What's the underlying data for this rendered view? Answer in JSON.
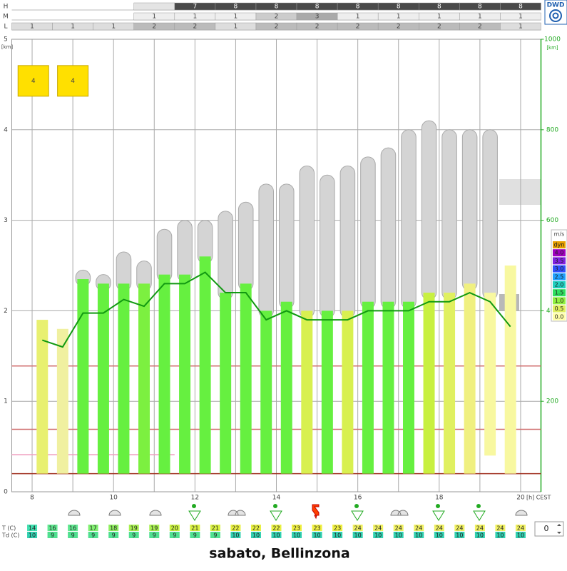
{
  "header": {
    "rows": [
      {
        "label": "H",
        "values": [
          null,
          null,
          null,
          null,
          7,
          8,
          8,
          8,
          8,
          8,
          8,
          8,
          8
        ],
        "colors": [
          null,
          null,
          null,
          "#e4e4e4",
          "#4a4a4a",
          "#4a4a4a",
          "#4a4a4a",
          "#4a4a4a",
          "#4a4a4a",
          "#4a4a4a",
          "#4a4a4a",
          "#4a4a4a",
          "#4a4a4a"
        ],
        "text_color": "#ffffff"
      },
      {
        "label": "M",
        "values": [
          null,
          null,
          null,
          1,
          1,
          1,
          2,
          3,
          1,
          1,
          1,
          1,
          1
        ],
        "colors": [
          null,
          null,
          null,
          "#eeeeee",
          "#eeeeee",
          "#eeeeee",
          "#cccccc",
          "#aaaaaa",
          "#eeeeee",
          "#eeeeee",
          "#eeeeee",
          "#eeeeee",
          "#eeeeee"
        ],
        "text_color": "#444444"
      },
      {
        "label": "L",
        "values": [
          1,
          1,
          1,
          2,
          2,
          1,
          2,
          2,
          2,
          2,
          2,
          2,
          1
        ],
        "colors": [
          "#dddddd",
          "#dddddd",
          "#dddddd",
          "#bbbbbb",
          "#bbbbbb",
          "#dddddd",
          "#bbbbbb",
          "#bbbbbb",
          "#bbbbbb",
          "#bbbbbb",
          "#bbbbbb",
          "#bbbbbb",
          "#dddddd"
        ],
        "text_color": "#444444"
      }
    ]
  },
  "logo": "DWD",
  "chart_data": {
    "type": "meteogram",
    "xlim": [
      7.5,
      20.5
    ],
    "xticks": [
      8,
      10,
      12,
      14,
      16,
      18,
      20
    ],
    "xgrid": [
      8,
      9,
      10,
      11,
      12,
      13,
      14,
      15,
      16,
      17,
      18,
      19,
      20
    ],
    "x_unit": "[h] CEST",
    "ylim": [
      0,
      5
    ],
    "yticks": [
      0,
      1,
      2,
      3,
      4,
      5
    ],
    "y_unit": "[km]",
    "y2lim": [
      0,
      1000
    ],
    "y2ticks": [
      200,
      400,
      600,
      800,
      1000
    ],
    "y2_unit": "[km]",
    "y2_color": "#22aa22",
    "grid": true,
    "bars": {
      "x": [
        8.25,
        8.75,
        9.25,
        9.75,
        10.25,
        10.75,
        11.25,
        11.75,
        12.25,
        12.75,
        13.25,
        13.75,
        14.25,
        14.75,
        15.25,
        15.75,
        16.25,
        16.75,
        17.25,
        17.75,
        18.25,
        18.75,
        19.25,
        19.75
      ],
      "base": [
        0.2,
        0.2,
        0.2,
        0.2,
        0.2,
        0.2,
        0.2,
        0.2,
        0.2,
        0.2,
        0.2,
        0.2,
        0.2,
        0.2,
        0.2,
        0.2,
        0.2,
        0.2,
        0.2,
        0.2,
        0.2,
        0.2,
        0.4,
        0.2
      ],
      "top": [
        1.9,
        1.8,
        2.35,
        2.3,
        2.3,
        2.3,
        2.4,
        2.4,
        2.6,
        2.2,
        2.3,
        2.0,
        2.1,
        2.0,
        2.0,
        2.0,
        2.1,
        2.1,
        2.1,
        2.2,
        2.2,
        2.3,
        2.2,
        2.5
      ],
      "cloud_top": [
        null,
        null,
        2.45,
        2.4,
        2.65,
        2.55,
        2.9,
        3.0,
        3.0,
        3.1,
        3.2,
        3.4,
        3.4,
        3.6,
        3.5,
        3.6,
        3.7,
        3.8,
        4.0,
        4.1,
        4.0,
        4.0,
        4.0,
        null
      ],
      "colors": [
        "#e8f070",
        "#f0f0a0",
        "#66f040",
        "#66f040",
        "#66f040",
        "#7cf040",
        "#66f040",
        "#66f040",
        "#66f040",
        "#66f040",
        "#66f040",
        "#66f040",
        "#66f040",
        "#d8f050",
        "#66f040",
        "#d8f050",
        "#66f040",
        "#66f040",
        "#66f040",
        "#c8f040",
        "#e0f060",
        "#f0f080",
        "#f8f8a0",
        "#f8f8a0"
      ]
    },
    "boundary_layer": {
      "color": "#119911",
      "axis": "y2",
      "x": [
        8.25,
        8.75,
        9.25,
        9.75,
        10.25,
        10.75,
        11.25,
        11.75,
        12.25,
        12.75,
        13.25,
        13.75,
        14.25,
        14.75,
        15.25,
        15.75,
        16.25,
        16.75,
        17.25,
        17.75,
        18.25,
        18.75,
        19.25,
        19.75
      ],
      "values": [
        335,
        320,
        395,
        395,
        425,
        410,
        460,
        460,
        485,
        440,
        440,
        380,
        400,
        380,
        380,
        380,
        400,
        400,
        400,
        420,
        420,
        440,
        420,
        365
      ]
    },
    "levels": [
      {
        "value": 1.39,
        "color": "#d07070",
        "x": [
          7.5,
          20.5
        ]
      },
      {
        "value": 0.69,
        "color": "#d07070",
        "x": [
          7.5,
          20.5
        ]
      },
      {
        "value": 0.41,
        "color": "#f0a0c0",
        "x": [
          7.5,
          11.5
        ]
      },
      {
        "value": 0.2,
        "color": "#a03020",
        "x": [
          7.5,
          20.5
        ]
      }
    ],
    "annotations": [
      {
        "label": "4",
        "x": 8.03,
        "y": 4.54
      },
      {
        "label": "4",
        "x": 9.0,
        "y": 4.54
      }
    ],
    "legend": {
      "title": "m/s",
      "items": [
        {
          "label": "dyn",
          "color": "#e8a000"
        },
        {
          "label": "4.0",
          "color": "#a000c0"
        },
        {
          "label": "3.5",
          "color": "#8020e0"
        },
        {
          "label": "3.0",
          "color": "#3050ff"
        },
        {
          "label": "2.5",
          "color": "#20a0ff"
        },
        {
          "label": "2.0",
          "color": "#20d0c0"
        },
        {
          "label": "1.5",
          "color": "#30e060"
        },
        {
          "label": "1.0",
          "color": "#90f040"
        },
        {
          "label": "0.5",
          "color": "#e0f060"
        },
        {
          "label": "0.0",
          "color": "#ffffa8"
        }
      ]
    }
  },
  "table": {
    "x": [
      8,
      8.5,
      9,
      9.5,
      10,
      10.5,
      11,
      11.5,
      12,
      12.5,
      13,
      13.5,
      14,
      14.5,
      15,
      15.5,
      16,
      16.5,
      17,
      17.5,
      18,
      18.5,
      19,
      19.5,
      20
    ],
    "t_label": "T  (C)",
    "td_label": "Td (C)",
    "t": [
      14,
      16,
      16,
      17,
      18,
      19,
      19,
      20,
      21,
      21,
      22,
      22,
      22,
      23,
      23,
      23,
      24,
      24,
      24,
      24,
      24,
      24,
      24,
      24,
      24
    ],
    "t_colors": [
      "#40e0b0",
      "#60e890",
      "#60e890",
      "#80f070",
      "#90f060",
      "#a8f050",
      "#a8f050",
      "#c8f040",
      "#d8f040",
      "#d8f040",
      "#e8f040",
      "#e8f040",
      "#e8f040",
      "#f0f040",
      "#f0f040",
      "#f0f040",
      "#f0f060",
      "#f0f060",
      "#f0f060",
      "#f0f060",
      "#f0f060",
      "#f0f060",
      "#f0f060",
      "#f0f060",
      "#f0f060"
    ],
    "td": [
      10,
      9,
      9,
      9,
      9,
      9,
      9,
      9,
      9,
      9,
      10,
      10,
      10,
      10,
      10,
      10,
      10,
      10,
      10,
      10,
      10,
      10,
      10,
      10,
      10
    ],
    "td_colors": [
      "#30d0b0",
      "#50e090",
      "#50e090",
      "#50e090",
      "#50e090",
      "#50e090",
      "#50e090",
      "#50e090",
      "#50e090",
      "#50e090",
      "#30d0b0",
      "#30d0b0",
      "#30d0b0",
      "#30d0b0",
      "#30d0b0",
      "#30d0b0",
      "#30d0b0",
      "#30d0b0",
      "#30d0b0",
      "#30d0b0",
      "#30d0b0",
      "#30d0b0",
      "#30d0b0",
      "#30d0b0",
      "#30d0b0"
    ]
  },
  "spinner": "0",
  "footer": "sabato, Bellinzona"
}
